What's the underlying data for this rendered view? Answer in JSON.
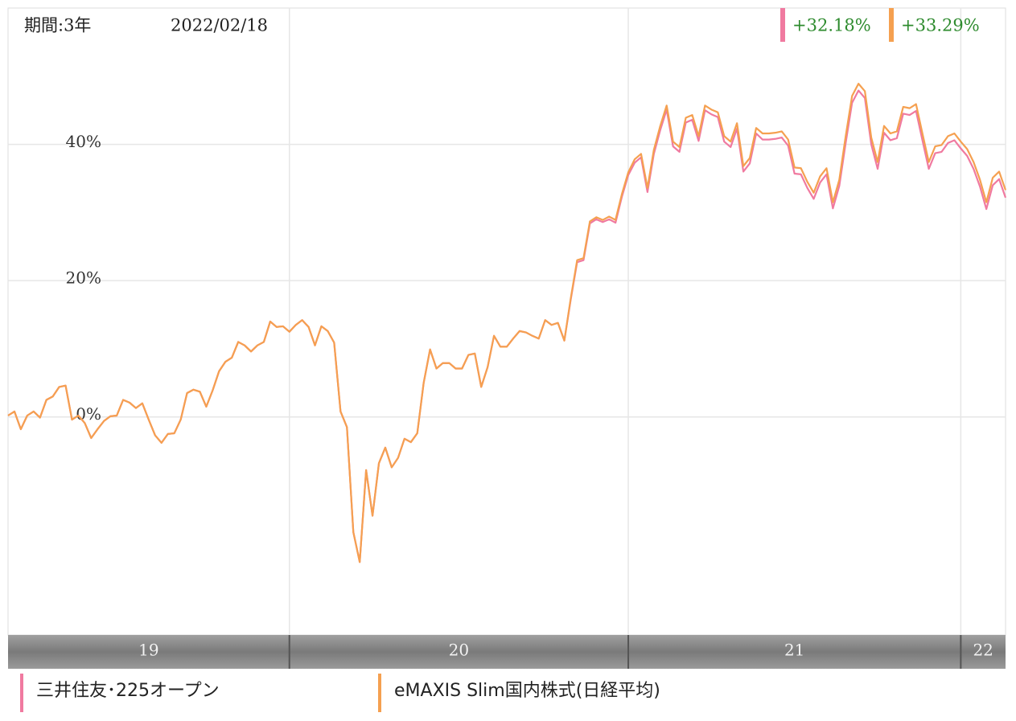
{
  "chart_data": {
    "type": "line",
    "period_label": "期間:3年",
    "date": "2022/02/18",
    "categories": [
      "19",
      null,
      null,
      null,
      null,
      null,
      null,
      null,
      null,
      null,
      null,
      null,
      null,
      null,
      null,
      null,
      null,
      null,
      null,
      null,
      null,
      null,
      null,
      null,
      null,
      null,
      null,
      null,
      null,
      null,
      null,
      null,
      null,
      null,
      null,
      null,
      null,
      null,
      null,
      null,
      null,
      null,
      null,
      null,
      "20",
      null,
      null,
      null,
      null,
      null,
      null,
      null,
      null,
      null,
      null,
      null,
      null,
      null,
      null,
      null,
      null,
      null,
      null,
      null,
      null,
      null,
      null,
      null,
      null,
      null,
      null,
      null,
      null,
      null,
      null,
      null,
      null,
      null,
      null,
      null,
      null,
      null,
      null,
      null,
      null,
      null,
      null,
      null,
      null,
      null,
      null,
      null,
      null,
      null,
      null,
      null,
      null,
      "21",
      null,
      null,
      null,
      null,
      null,
      null,
      null,
      null,
      null,
      null,
      null,
      null,
      null,
      null,
      null,
      null,
      null,
      null,
      null,
      null,
      null,
      null,
      null,
      null,
      null,
      null,
      null,
      null,
      null,
      null,
      null,
      null,
      null,
      null,
      null,
      null,
      null,
      null,
      null,
      null,
      null,
      null,
      null,
      null,
      null,
      null,
      null,
      null,
      null,
      null,
      null,
      "22",
      null,
      null,
      null,
      null,
      null,
      null,
      null
    ],
    "series": [
      {
        "name": "三井住友･225オープン",
        "color": "#f07aa0",
        "last_label": "+32.18%",
        "values": [
          0.2,
          0.8,
          -1.8,
          0.2,
          0.8,
          -0.1,
          2.5,
          3.0,
          4.4,
          4.6,
          -0.4,
          0.2,
          -0.9,
          -3.1,
          -1.8,
          -0.6,
          0.1,
          0.2,
          2.5,
          2.1,
          1.3,
          2.0,
          -0.4,
          -2.7,
          -3.8,
          -2.5,
          -2.4,
          -0.4,
          3.5,
          4.0,
          3.7,
          1.5,
          3.9,
          6.7,
          8.1,
          8.7,
          11.0,
          10.5,
          9.6,
          10.5,
          11.0,
          14.0,
          13.2,
          13.3,
          12.5,
          13.5,
          14.2,
          13.2,
          10.5,
          13.3,
          12.6,
          10.9,
          0.8,
          -1.5,
          -16.9,
          -21.3,
          -7.8,
          -14.5,
          -6.8,
          -4.5,
          -7.4,
          -6.0,
          -3.2,
          -3.7,
          -2.4,
          5.0,
          9.9,
          7.1,
          7.9,
          7.9,
          7.1,
          7.1,
          9.1,
          9.3,
          4.4,
          7.3,
          11.9,
          10.3,
          10.3,
          11.5,
          12.6,
          12.4,
          11.9,
          11.5,
          14.2,
          13.5,
          13.8,
          11.2,
          17.2,
          22.7,
          23.0,
          28.4,
          29.0,
          28.6,
          29.0,
          28.5,
          32.3,
          35.5,
          37.3,
          38.1,
          33.0,
          38.6,
          42.1,
          45.1,
          39.7,
          38.9,
          43.2,
          43.6,
          40.5,
          45.0,
          44.4,
          44.0,
          40.4,
          39.6,
          42.3,
          36.0,
          37.2,
          41.6,
          40.7,
          40.7,
          40.8,
          41.0,
          39.8,
          35.7,
          35.6,
          33.6,
          32.0,
          34.4,
          35.6,
          30.6,
          33.9,
          40.2,
          46.1,
          47.9,
          46.8,
          40.0,
          36.4,
          41.7,
          40.6,
          40.9,
          44.5,
          44.3,
          44.9,
          40.6,
          36.4,
          38.7,
          38.9,
          40.2,
          40.6,
          39.4,
          38.3,
          36.4,
          33.8,
          30.5,
          34.0,
          34.9,
          32.18
        ]
      },
      {
        "name": "eMAXIS Slim国内株式(日経平均)",
        "color": "#f5a050",
        "last_label": "+33.29%",
        "values": [
          0.2,
          0.8,
          -1.8,
          0.2,
          0.8,
          -0.1,
          2.5,
          3.0,
          4.4,
          4.6,
          -0.4,
          0.2,
          -0.9,
          -3.1,
          -1.8,
          -0.6,
          0.1,
          0.2,
          2.5,
          2.1,
          1.3,
          2.0,
          -0.4,
          -2.7,
          -3.8,
          -2.5,
          -2.4,
          -0.4,
          3.5,
          4.0,
          3.7,
          1.5,
          3.9,
          6.7,
          8.1,
          8.7,
          11.0,
          10.5,
          9.6,
          10.5,
          11.0,
          14.0,
          13.2,
          13.3,
          12.5,
          13.5,
          14.2,
          13.2,
          10.5,
          13.3,
          12.6,
          10.9,
          0.8,
          -1.5,
          -16.9,
          -21.3,
          -7.8,
          -14.5,
          -6.8,
          -4.5,
          -7.4,
          -6.0,
          -3.2,
          -3.7,
          -2.4,
          5.0,
          9.9,
          7.1,
          7.9,
          7.9,
          7.1,
          7.1,
          9.1,
          9.3,
          4.4,
          7.3,
          11.9,
          10.3,
          10.3,
          11.5,
          12.6,
          12.4,
          11.9,
          11.5,
          14.2,
          13.5,
          13.8,
          11.2,
          17.4,
          23.0,
          23.3,
          28.7,
          29.3,
          28.9,
          29.4,
          28.9,
          32.7,
          35.9,
          37.8,
          38.6,
          33.6,
          39.2,
          42.7,
          45.7,
          40.4,
          39.6,
          43.9,
          44.3,
          41.2,
          45.7,
          45.1,
          44.7,
          41.2,
          40.4,
          43.1,
          36.8,
          38.0,
          42.4,
          41.6,
          41.6,
          41.7,
          41.9,
          40.7,
          36.6,
          36.5,
          34.5,
          32.9,
          35.3,
          36.5,
          31.5,
          34.8,
          41.2,
          47.1,
          48.9,
          47.8,
          41.0,
          37.4,
          42.7,
          41.6,
          41.9,
          45.5,
          45.3,
          45.9,
          41.6,
          37.4,
          39.7,
          39.9,
          41.2,
          41.6,
          40.4,
          39.3,
          37.4,
          34.8,
          31.5,
          35.1,
          36.0,
          33.29
        ]
      }
    ],
    "ylim": [
      -32,
      60
    ],
    "yticks": [
      {
        "value": 0,
        "label": "0%"
      },
      {
        "value": 20,
        "label": "20%"
      },
      {
        "value": 40,
        "label": "40%"
      }
    ],
    "grid": true
  }
}
